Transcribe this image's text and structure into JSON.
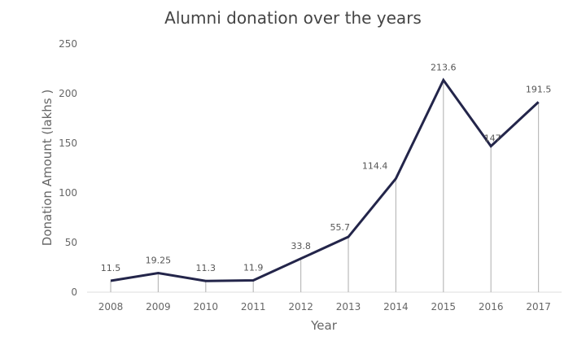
{
  "chart_data": {
    "type": "line",
    "title": "Alumni donation over the years",
    "xlabel": "Year",
    "ylabel": "Donation Amount (lakhs )",
    "categories": [
      "2008",
      "2009",
      "2010",
      "2011",
      "2012",
      "2013",
      "2014",
      "2015",
      "2016",
      "2017"
    ],
    "series": [
      {
        "values": [
          11.5,
          19.25,
          11.3,
          11.9,
          33.8,
          55.7,
          114.4,
          213.6,
          147,
          191.5
        ],
        "labels": [
          "11.5",
          "19.25",
          "11.3",
          "11.9",
          "33.8",
          "55.7",
          "114.4",
          "213.6",
          "147",
          "191.5"
        ]
      }
    ],
    "yticks": [
      "0",
      "50",
      "100",
      "150",
      "200",
      "250"
    ],
    "ylim": [
      0,
      250
    ],
    "grid": false,
    "drop_lines": true,
    "colors": {
      "line": "#23254a",
      "drop_line": "#bbbbbb",
      "axis": "#dddddd"
    }
  }
}
